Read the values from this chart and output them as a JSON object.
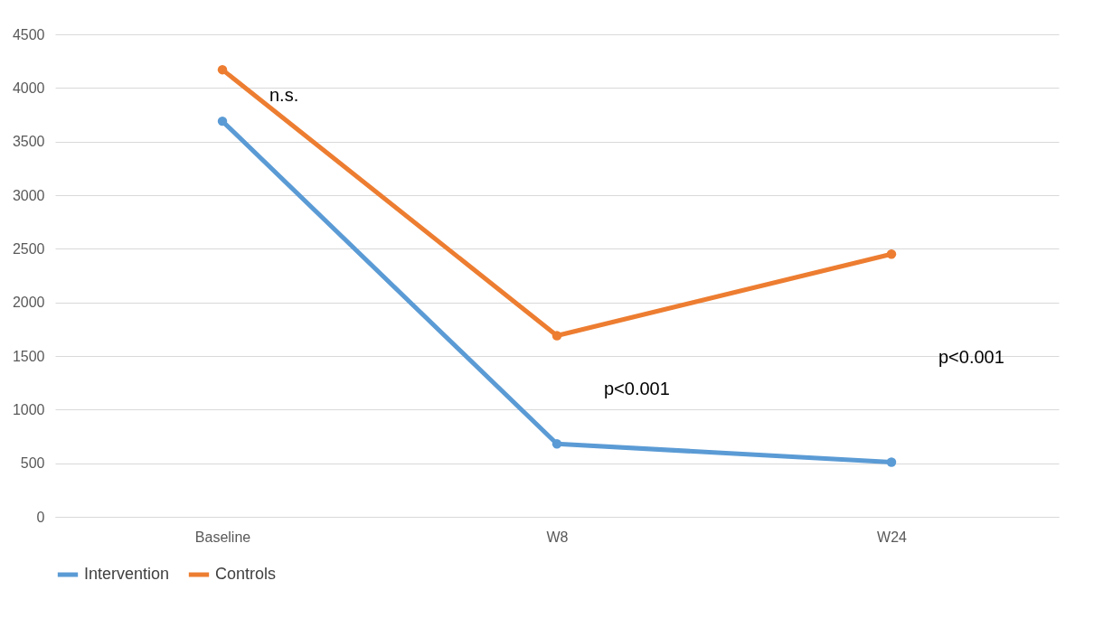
{
  "chart_data": {
    "type": "line",
    "categories": [
      "Baseline",
      "W8",
      "W24"
    ],
    "series": [
      {
        "name": "Intervention",
        "color": "#5b9bd5",
        "values": [
          3690,
          680,
          510
        ]
      },
      {
        "name": "Controls",
        "color": "#ed7d31",
        "values": [
          4170,
          1690,
          2450
        ]
      }
    ],
    "ylim": [
      0,
      4500
    ],
    "yticks": [
      0,
      500,
      1000,
      1500,
      2000,
      2500,
      3000,
      3500,
      4000,
      4500
    ],
    "grid": "y",
    "legend": "bottom",
    "marker": "circle",
    "line_style": "solid",
    "annotations": [
      "n.s.",
      "p<0.001",
      "p<0.001"
    ]
  }
}
